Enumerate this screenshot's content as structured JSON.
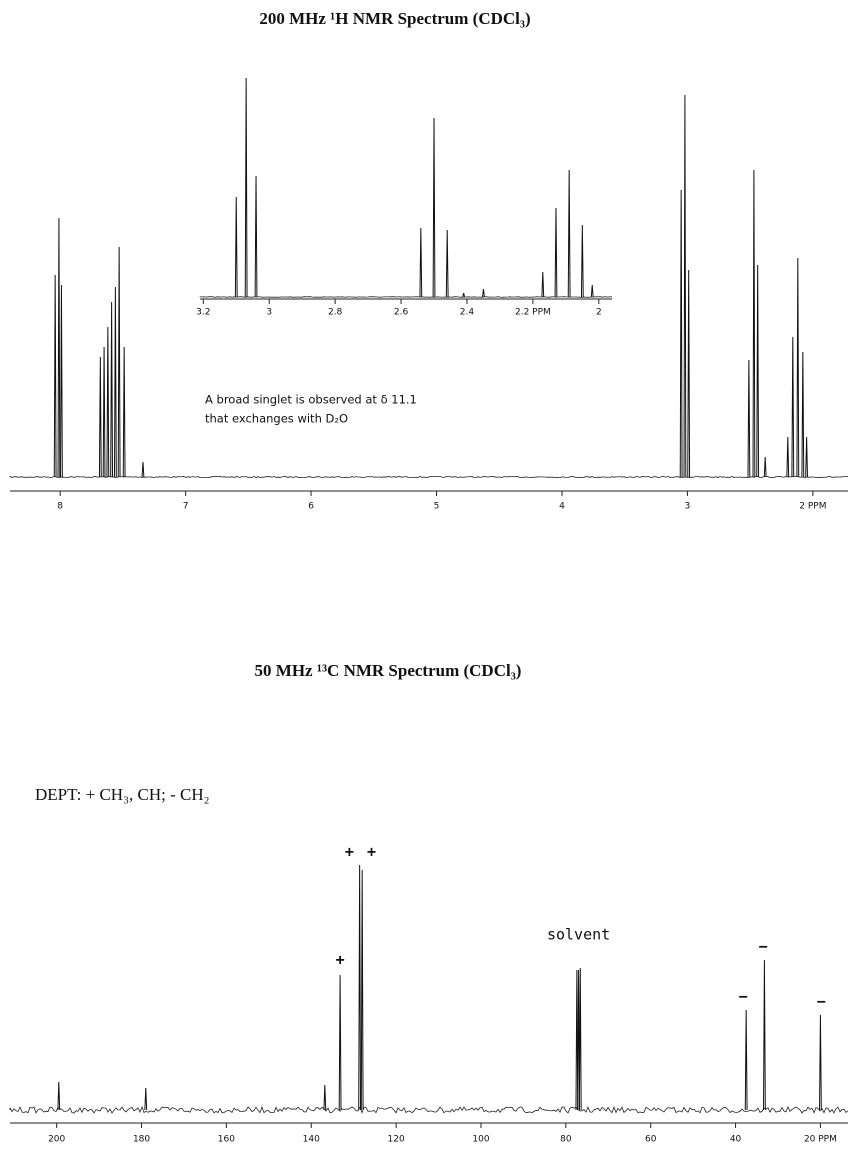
{
  "chart_data": [
    {
      "type": "spectrum",
      "title": "200 MHz ¹H NMR Spectrum (CDCl₃)",
      "notes": [
        "A broad singlet is observed at δ 11.1",
        "that exchanges with D₂O"
      ],
      "xlim": [
        8.4,
        1.72
      ],
      "ylim": [
        0,
        400
      ],
      "xticks": [
        8,
        7,
        6,
        5,
        4,
        3,
        {
          "value": 2,
          "label": "2 PPM"
        }
      ],
      "x": [
        8.04,
        8.01,
        7.99,
        7.68,
        7.65,
        7.62,
        7.59,
        7.56,
        7.53,
        7.49,
        7.34,
        3.05,
        3.02,
        2.99,
        2.51,
        2.47,
        2.44,
        2.38,
        2.2,
        2.16,
        2.12,
        2.08,
        2.05
      ],
      "values": [
        202,
        259,
        192,
        120,
        130,
        150,
        175,
        190,
        230,
        130,
        15,
        287,
        382,
        207,
        117,
        307,
        212,
        20,
        40,
        140,
        219,
        125,
        40
      ]
    },
    {
      "type": "spectrum",
      "xlim": [
        3.21,
        1.96
      ],
      "ylim": [
        0,
        240
      ],
      "xticks": [
        3.2,
        3.0,
        2.8,
        2.6,
        2.4,
        {
          "value": 2.2,
          "label": "2.2 PPM"
        },
        2.0
      ],
      "x": [
        3.1,
        3.07,
        3.04,
        2.54,
        2.5,
        2.46,
        2.41,
        2.35,
        2.17,
        2.13,
        2.09,
        2.05,
        2.02
      ],
      "values": [
        100,
        219,
        121,
        69,
        179,
        67,
        4,
        8,
        25,
        89,
        127,
        72,
        12
      ]
    },
    {
      "type": "spectrum",
      "title": "50 MHz ¹³C NMR Spectrum (CDCl₃)",
      "notes": [
        "DEPT: + CH₃, CH; - CH₂"
      ],
      "xlim": [
        211,
        13.5
      ],
      "ylim": [
        0,
        260
      ],
      "xticks": [
        200,
        180,
        160,
        140,
        120,
        100,
        80,
        60,
        40,
        {
          "value": 20,
          "label": "20 PPM"
        }
      ],
      "x": [
        199.5,
        179,
        136.8,
        133.2,
        128.6,
        128.0,
        77.4,
        77.0,
        76.6,
        37.5,
        33.2,
        20.0
      ],
      "values": [
        28,
        22,
        25,
        135,
        245,
        240,
        140,
        140,
        142,
        100,
        150,
        95
      ],
      "annotations": [
        {
          "text": "+",
          "x": 133.2,
          "y": 150
        },
        {
          "text": "+",
          "x": 131.0,
          "y": 258
        },
        {
          "text": "+",
          "x": 125.8,
          "y": 258
        },
        {
          "text": "solvent",
          "x": 77,
          "y": 175
        },
        {
          "text": "−",
          "x": 38.2,
          "y": 113
        },
        {
          "text": "−",
          "x": 33.5,
          "y": 163
        },
        {
          "text": "−",
          "x": 19.8,
          "y": 108
        }
      ]
    }
  ]
}
